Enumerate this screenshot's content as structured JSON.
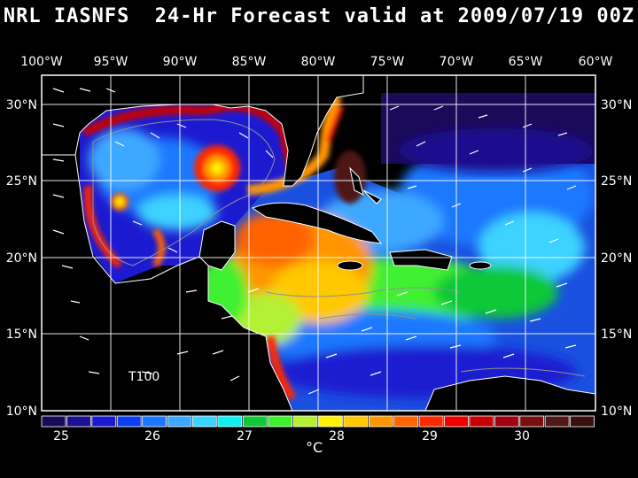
{
  "title": "NRL IASNFS  24-Hr Forecast valid at 2009/07/19 00Z",
  "map_label": "T100",
  "longitudes": [
    "100°W",
    "95°W",
    "90°W",
    "85°W",
    "80°W",
    "75°W",
    "70°W",
    "65°W",
    "60°W"
  ],
  "latitudes": [
    "30°N",
    "25°N",
    "20°N",
    "15°N",
    "10°N"
  ],
  "colorbar": {
    "ticks": [
      "25",
      "26",
      "27",
      "28",
      "29",
      "30"
    ],
    "unit": "°C",
    "colors": [
      "#1a0a5a",
      "#1c1090",
      "#1c1ad0",
      "#0a40f0",
      "#1e78ff",
      "#3ca8ff",
      "#3cd2ff",
      "#10f0f0",
      "#10c838",
      "#40f030",
      "#b4f034",
      "#fff000",
      "#ffc800",
      "#ff9600",
      "#ff6400",
      "#ff2800",
      "#f00000",
      "#c80000",
      "#a00010",
      "#781010",
      "#501818",
      "#3c1010"
    ]
  },
  "colors": {
    "land": "#000000",
    "grid": "#ffffff",
    "background": "#000000"
  }
}
